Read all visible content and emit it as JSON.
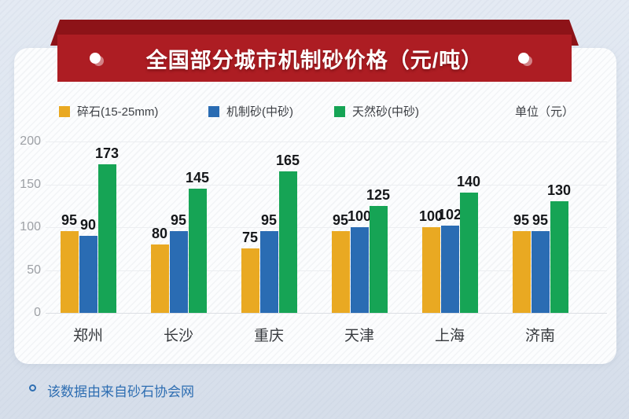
{
  "banner": {
    "title": "全国部分城市机制砂价格（元/吨）"
  },
  "legend": {
    "items": [
      {
        "label": "碎石(15-25mm)",
        "color": "#e9a922"
      },
      {
        "label": "机制砂(中砂)",
        "color": "#2a6cb3"
      },
      {
        "label": "天然砂(中砂)",
        "color": "#16a455"
      }
    ],
    "unit_label": "单位（元）"
  },
  "chart_data": {
    "type": "bar",
    "title": "全国部分城市机制砂价格（元/吨）",
    "categories": [
      "郑州",
      "长沙",
      "重庆",
      "天津",
      "上海",
      "济南"
    ],
    "series": [
      {
        "name": "碎石(15-25mm)",
        "color": "#e9a922",
        "values": [
          95,
          80,
          75,
          95,
          100,
          95
        ]
      },
      {
        "name": "机制砂(中砂)",
        "color": "#2a6cb3",
        "values": [
          90,
          95,
          95,
          100,
          102,
          95
        ]
      },
      {
        "name": "天然砂(中砂)",
        "color": "#16a455",
        "values": [
          173,
          145,
          165,
          125,
          140,
          130
        ]
      }
    ],
    "ylabel": "元",
    "ylim": [
      0,
      200
    ],
    "yticks": [
      0,
      50,
      100,
      150,
      200
    ],
    "grid": true,
    "legend_position": "top"
  },
  "footer": {
    "note": "该数据由来自砂石协会网"
  }
}
